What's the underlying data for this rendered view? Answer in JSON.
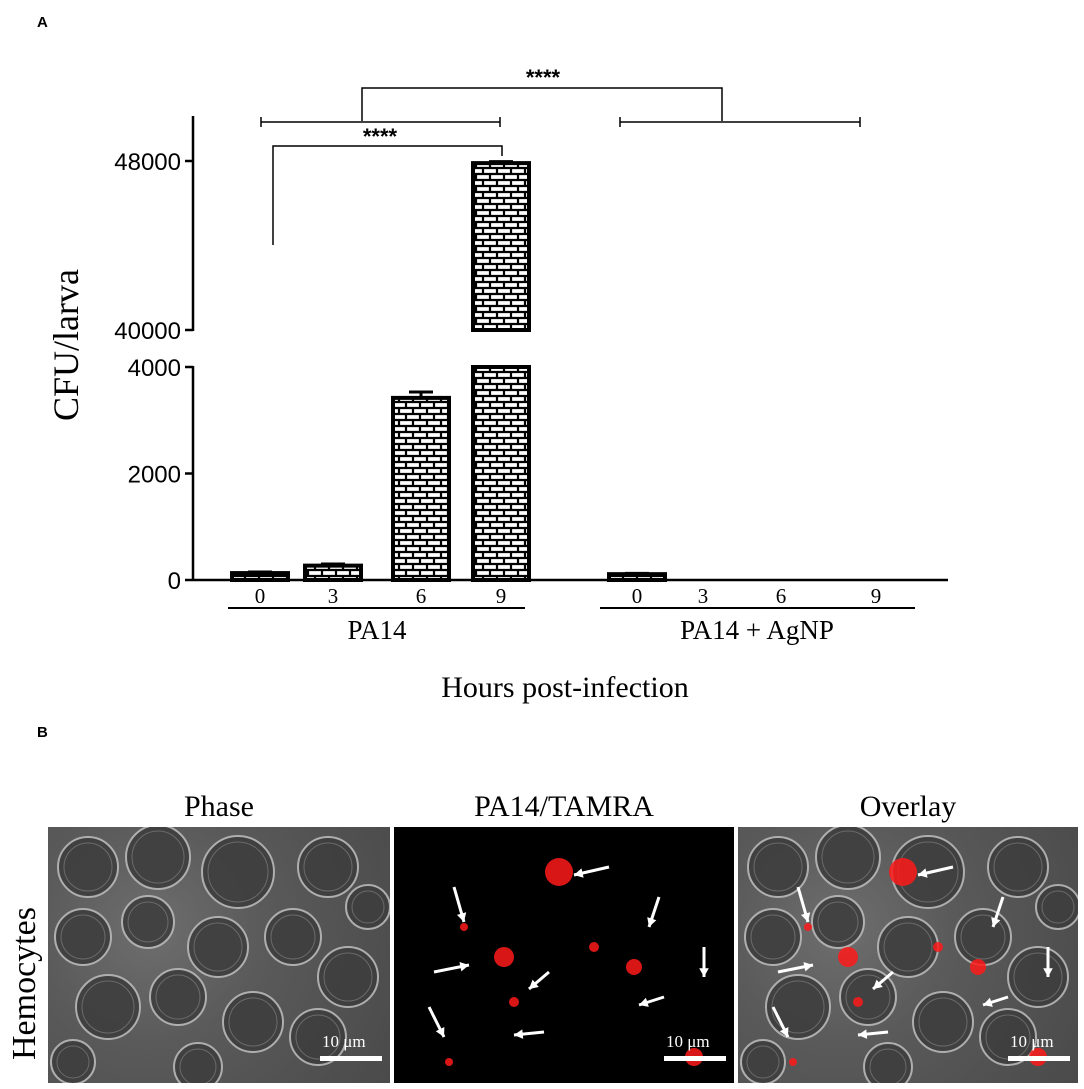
{
  "panel_a_label": "A",
  "panel_b_label": "B",
  "chart_data": {
    "type": "bar",
    "ylabel": "CFU/larva",
    "xlabel": "Hours post-infection",
    "y_axis_break": {
      "lower_range": [
        0,
        4000
      ],
      "upper_range": [
        40000,
        48000
      ]
    },
    "yticks_lower": [
      "0",
      "2000",
      "4000"
    ],
    "yticks_upper": [
      "40000",
      "48000"
    ],
    "groups": [
      {
        "name": "PA14",
        "categories": [
          "0",
          "3",
          "6",
          "9"
        ],
        "values": [
          130,
          270,
          3420,
          47900
        ],
        "errors": [
          20,
          30,
          110,
          70
        ]
      },
      {
        "name": "PA14 + AgNP",
        "categories": [
          "0",
          "3",
          "6",
          "9"
        ],
        "values": [
          110,
          0,
          0,
          0
        ],
        "errors": [
          15,
          0,
          0,
          0
        ]
      }
    ],
    "significance": [
      {
        "label": "****",
        "between": "PA14 0h vs PA14 9h"
      },
      {
        "label": "****",
        "between": "PA14 vs PA14 + AgNP"
      }
    ]
  },
  "micrographs": {
    "row_label": "Hemocytes",
    "columns": [
      "Phase",
      "PA14/TAMRA",
      "Overlay"
    ],
    "scale_bar": "10 μm",
    "colors": {
      "signal": "#ff1a1a",
      "arrow": "#ffffff"
    }
  }
}
